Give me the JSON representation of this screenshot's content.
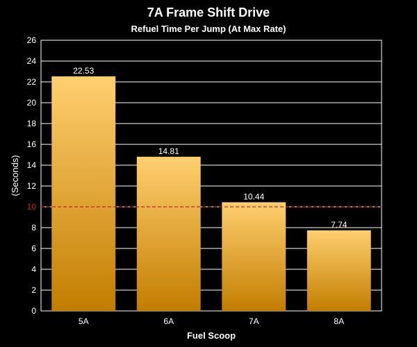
{
  "chart_data": {
    "type": "bar",
    "title": "7A Frame Shift Drive",
    "subtitle": "Refuel Time Per Jump (At Max Rate)",
    "xlabel": "Fuel Scoop",
    "ylabel": "(Seconds)",
    "categories": [
      "5A",
      "6A",
      "7A",
      "8A"
    ],
    "values": [
      22.53,
      14.81,
      10.44,
      7.74
    ],
    "data_labels": [
      "22.53",
      "14.81",
      "10.44",
      "7.74"
    ],
    "ylim": [
      0,
      26
    ],
    "yticks": [
      0,
      2,
      4,
      6,
      8,
      10,
      12,
      14,
      16,
      18,
      20,
      22,
      24,
      26
    ],
    "grid": true,
    "legend": "none",
    "reference_line": {
      "value": 10,
      "color": "#cc2222",
      "style": "dashed"
    },
    "colors": {
      "bar_top": "#ffcf70",
      "bar_bottom": "#c27d00",
      "background": "#000000",
      "grid": "#ffffff",
      "tick_highlight": "#cc2222"
    }
  }
}
